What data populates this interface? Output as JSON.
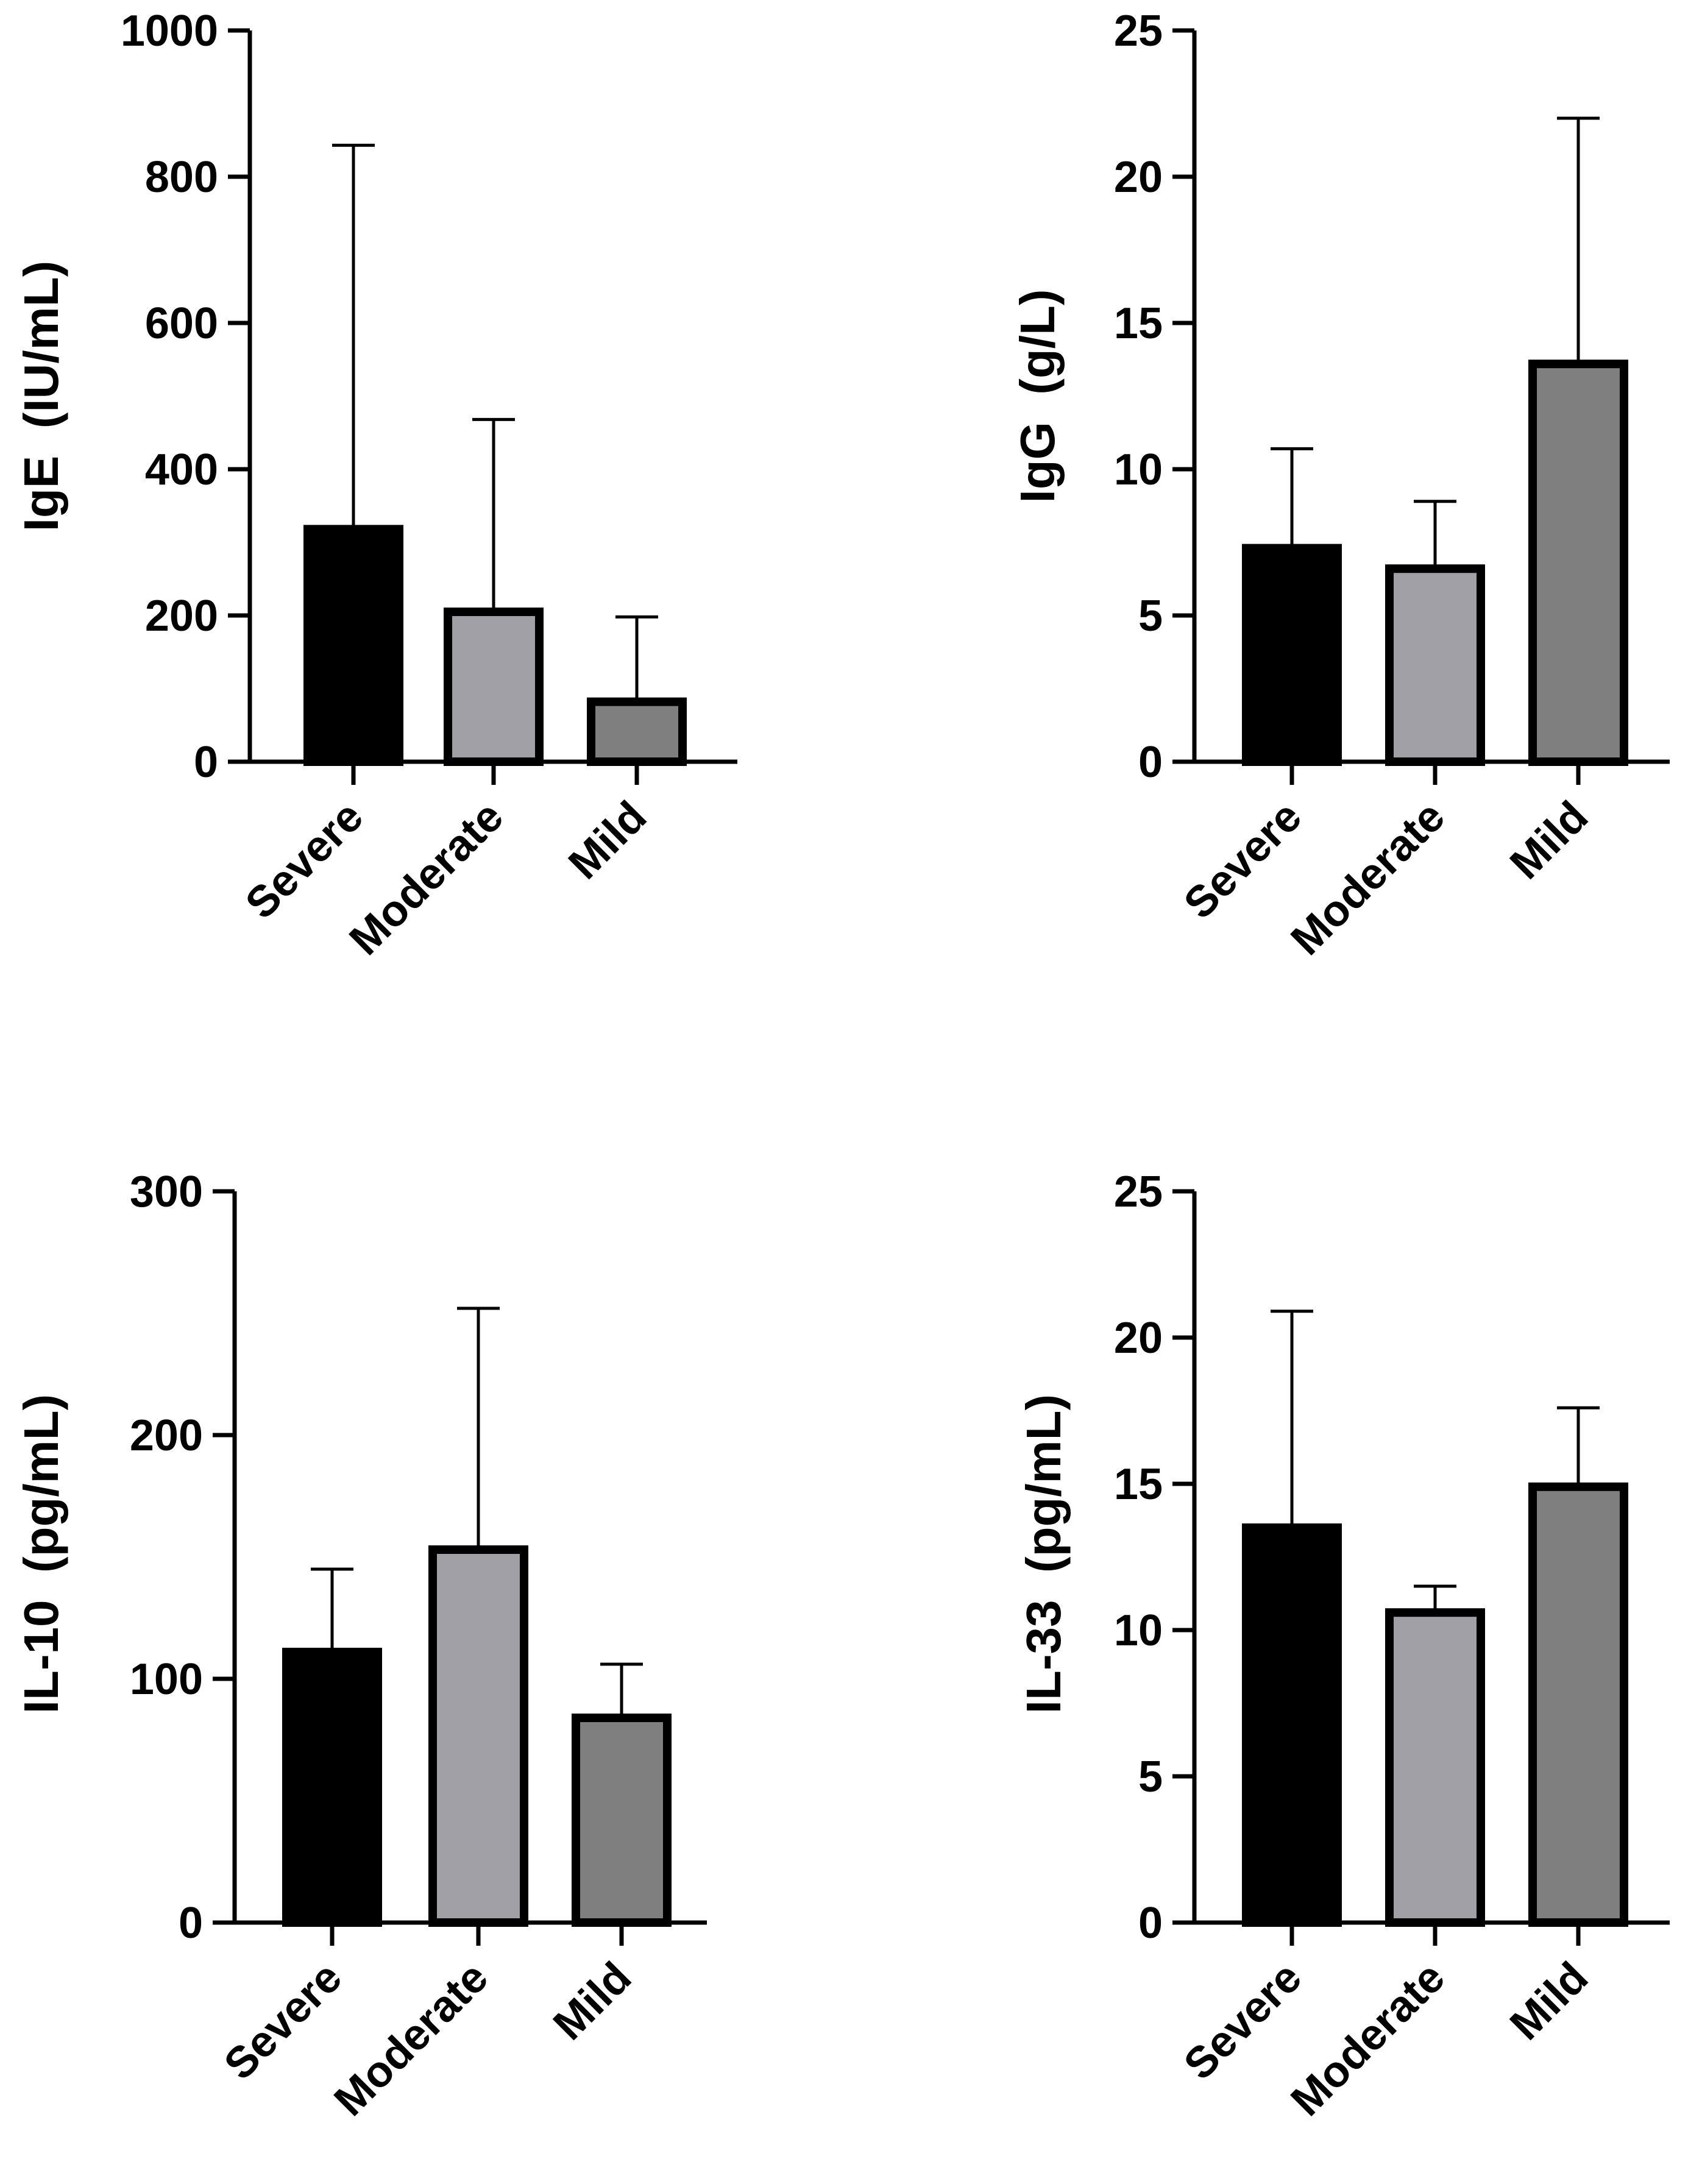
{
  "colors": {
    "axis": "#000000",
    "severe": "#000000",
    "moderate": "#a0a0a6",
    "mild": "#7f7f7f",
    "outline": "#000000"
  },
  "chart_data": [
    {
      "type": "bar",
      "title": "",
      "ylabel": "IgE  (IU/mL)",
      "xlabel": "",
      "categories": [
        "Severe",
        "Moderate",
        "Mild"
      ],
      "values": [
        318,
        205,
        82
      ],
      "error_upper": [
        843,
        468,
        198
      ],
      "ylim": [
        0,
        1000
      ],
      "yticks": [
        "0",
        "200",
        "400",
        "600",
        "800",
        "1000"
      ],
      "ytick_values": [
        0,
        200,
        400,
        600,
        800,
        1000
      ],
      "grid": false
    },
    {
      "type": "bar",
      "title": "",
      "ylabel": "IgG  (g/L)",
      "xlabel": "",
      "categories": [
        "Severe",
        "Moderate",
        "Mild"
      ],
      "values": [
        7.3,
        6.6,
        13.6
      ],
      "error_upper": [
        10.7,
        8.9,
        22.0
      ],
      "ylim": [
        0,
        25
      ],
      "yticks": [
        "0",
        "5",
        "10",
        "15",
        "20",
        "25"
      ],
      "ytick_values": [
        0,
        5,
        10,
        15,
        20,
        25
      ],
      "grid": false
    },
    {
      "type": "bar",
      "title": "",
      "ylabel": "IL-10  (pg/mL)",
      "xlabel": "",
      "categories": [
        "Severe",
        "Moderate",
        "Mild"
      ],
      "values": [
        111,
        153,
        84
      ],
      "error_upper": [
        145,
        252,
        106
      ],
      "ylim": [
        0,
        300
      ],
      "yticks": [
        "0",
        "100",
        "200",
        "300"
      ],
      "ytick_values": [
        0,
        100,
        200,
        300
      ],
      "grid": false
    },
    {
      "type": "bar",
      "title": "",
      "ylabel": "IL-33  (pg/mL)",
      "xlabel": "",
      "categories": [
        "Severe",
        "Moderate",
        "Mild"
      ],
      "values": [
        13.5,
        10.6,
        14.9
      ],
      "error_upper": [
        20.9,
        11.5,
        17.6
      ],
      "ylim": [
        0,
        25
      ],
      "yticks": [
        "0",
        "5",
        "10",
        "15",
        "20",
        "25"
      ],
      "ytick_values": [
        0,
        5,
        10,
        15,
        20,
        25
      ],
      "grid": false
    }
  ]
}
